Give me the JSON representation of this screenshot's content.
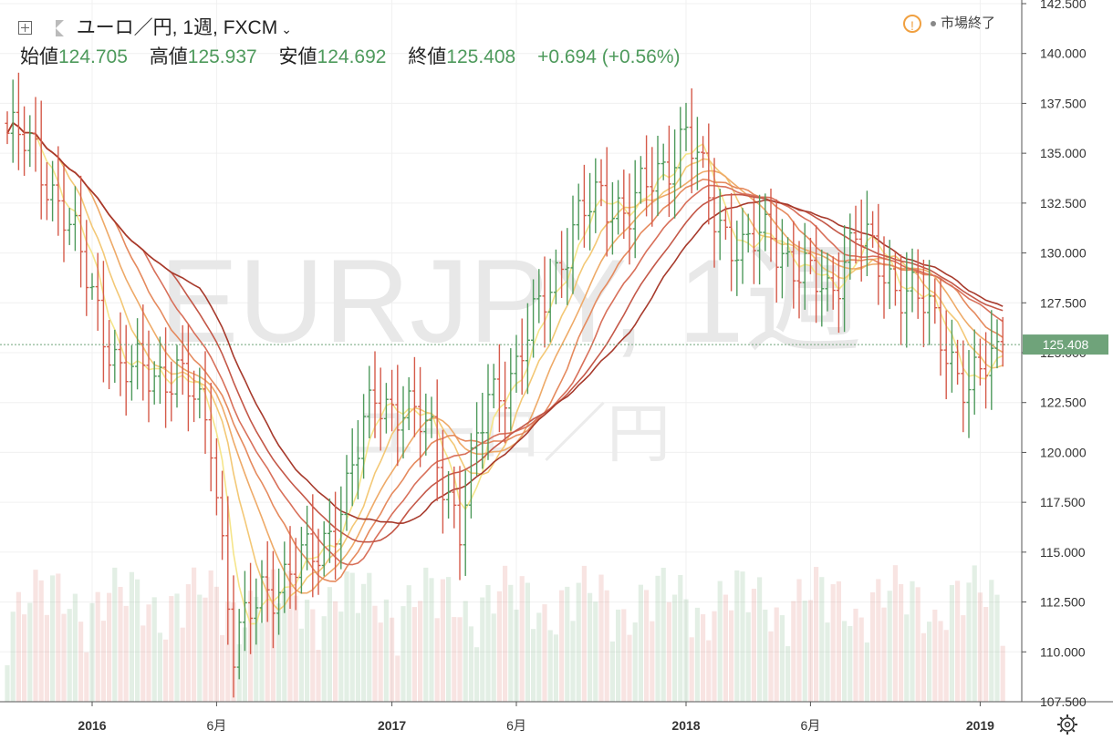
{
  "header": {
    "symbol_label": "ユーロ／円, 1週, FXCM",
    "chevron": "⌄",
    "open_label": "始値",
    "open": "124.705",
    "high_label": "高値",
    "high": "125.937",
    "low_label": "安値",
    "low": "124.692",
    "close_label": "終値",
    "close": "125.408",
    "change": "+0.694",
    "change_pct": "(+0.56%)"
  },
  "status": {
    "icon": "warning-icon",
    "label": "市場終了"
  },
  "watermark": {
    "symbol": "EURJPY, 1週",
    "pair": "ユーロ／円"
  },
  "current_price_label": "125.408",
  "colors": {
    "up": "#4e9a5c",
    "down": "#d55a4a",
    "price_tag": "#6fa37a"
  },
  "chart_data": {
    "type": "ohlc",
    "title": "",
    "xlabel": "",
    "ylabel": "",
    "ylim": [
      107.5,
      142.5
    ],
    "y_ticks": [
      "107.500",
      "110.000",
      "112.500",
      "115.000",
      "117.500",
      "120.000",
      "122.500",
      "125.000",
      "127.500",
      "130.000",
      "132.500",
      "135.000",
      "137.500",
      "140.000",
      "142.500"
    ],
    "x_ticks": [
      {
        "label": "2016",
        "week": 15,
        "bold": true
      },
      {
        "label": "6月",
        "week": 37,
        "bold": false
      },
      {
        "label": "2017",
        "week": 68,
        "bold": true
      },
      {
        "label": "6月",
        "week": 90,
        "bold": false
      },
      {
        "label": "2018",
        "week": 120,
        "bold": true
      },
      {
        "label": "6月",
        "week": 142,
        "bold": false
      },
      {
        "label": "2019",
        "week": 172,
        "bold": true
      }
    ],
    "keypoints_close": [
      [
        0,
        136
      ],
      [
        5,
        135
      ],
      [
        10,
        132
      ],
      [
        15,
        128
      ],
      [
        20,
        124
      ],
      [
        25,
        124
      ],
      [
        30,
        124
      ],
      [
        36,
        121
      ],
      [
        40,
        110
      ],
      [
        45,
        113
      ],
      [
        50,
        114
      ],
      [
        55,
        115
      ],
      [
        60,
        118
      ],
      [
        65,
        123
      ],
      [
        70,
        122
      ],
      [
        75,
        121
      ],
      [
        80,
        116
      ],
      [
        85,
        123
      ],
      [
        90,
        124
      ],
      [
        95,
        128
      ],
      [
        100,
        131
      ],
      [
        105,
        133
      ],
      [
        110,
        132
      ],
      [
        115,
        134
      ],
      [
        120,
        136
      ],
      [
        125,
        132
      ],
      [
        130,
        130
      ],
      [
        135,
        131
      ],
      [
        140,
        129
      ],
      [
        145,
        128
      ],
      [
        150,
        131
      ],
      [
        155,
        129
      ],
      [
        160,
        128
      ],
      [
        165,
        126
      ],
      [
        170,
        123
      ],
      [
        176,
        125.4
      ]
    ],
    "ma_periods": [
      5,
      10,
      15,
      20,
      25,
      30,
      35
    ],
    "ma_colors": [
      "#f5e58a",
      "#f3c876",
      "#eeaa68",
      "#e58a5e",
      "#d8705a",
      "#c45848",
      "#a73a2c"
    ],
    "current_close": 125.408
  }
}
